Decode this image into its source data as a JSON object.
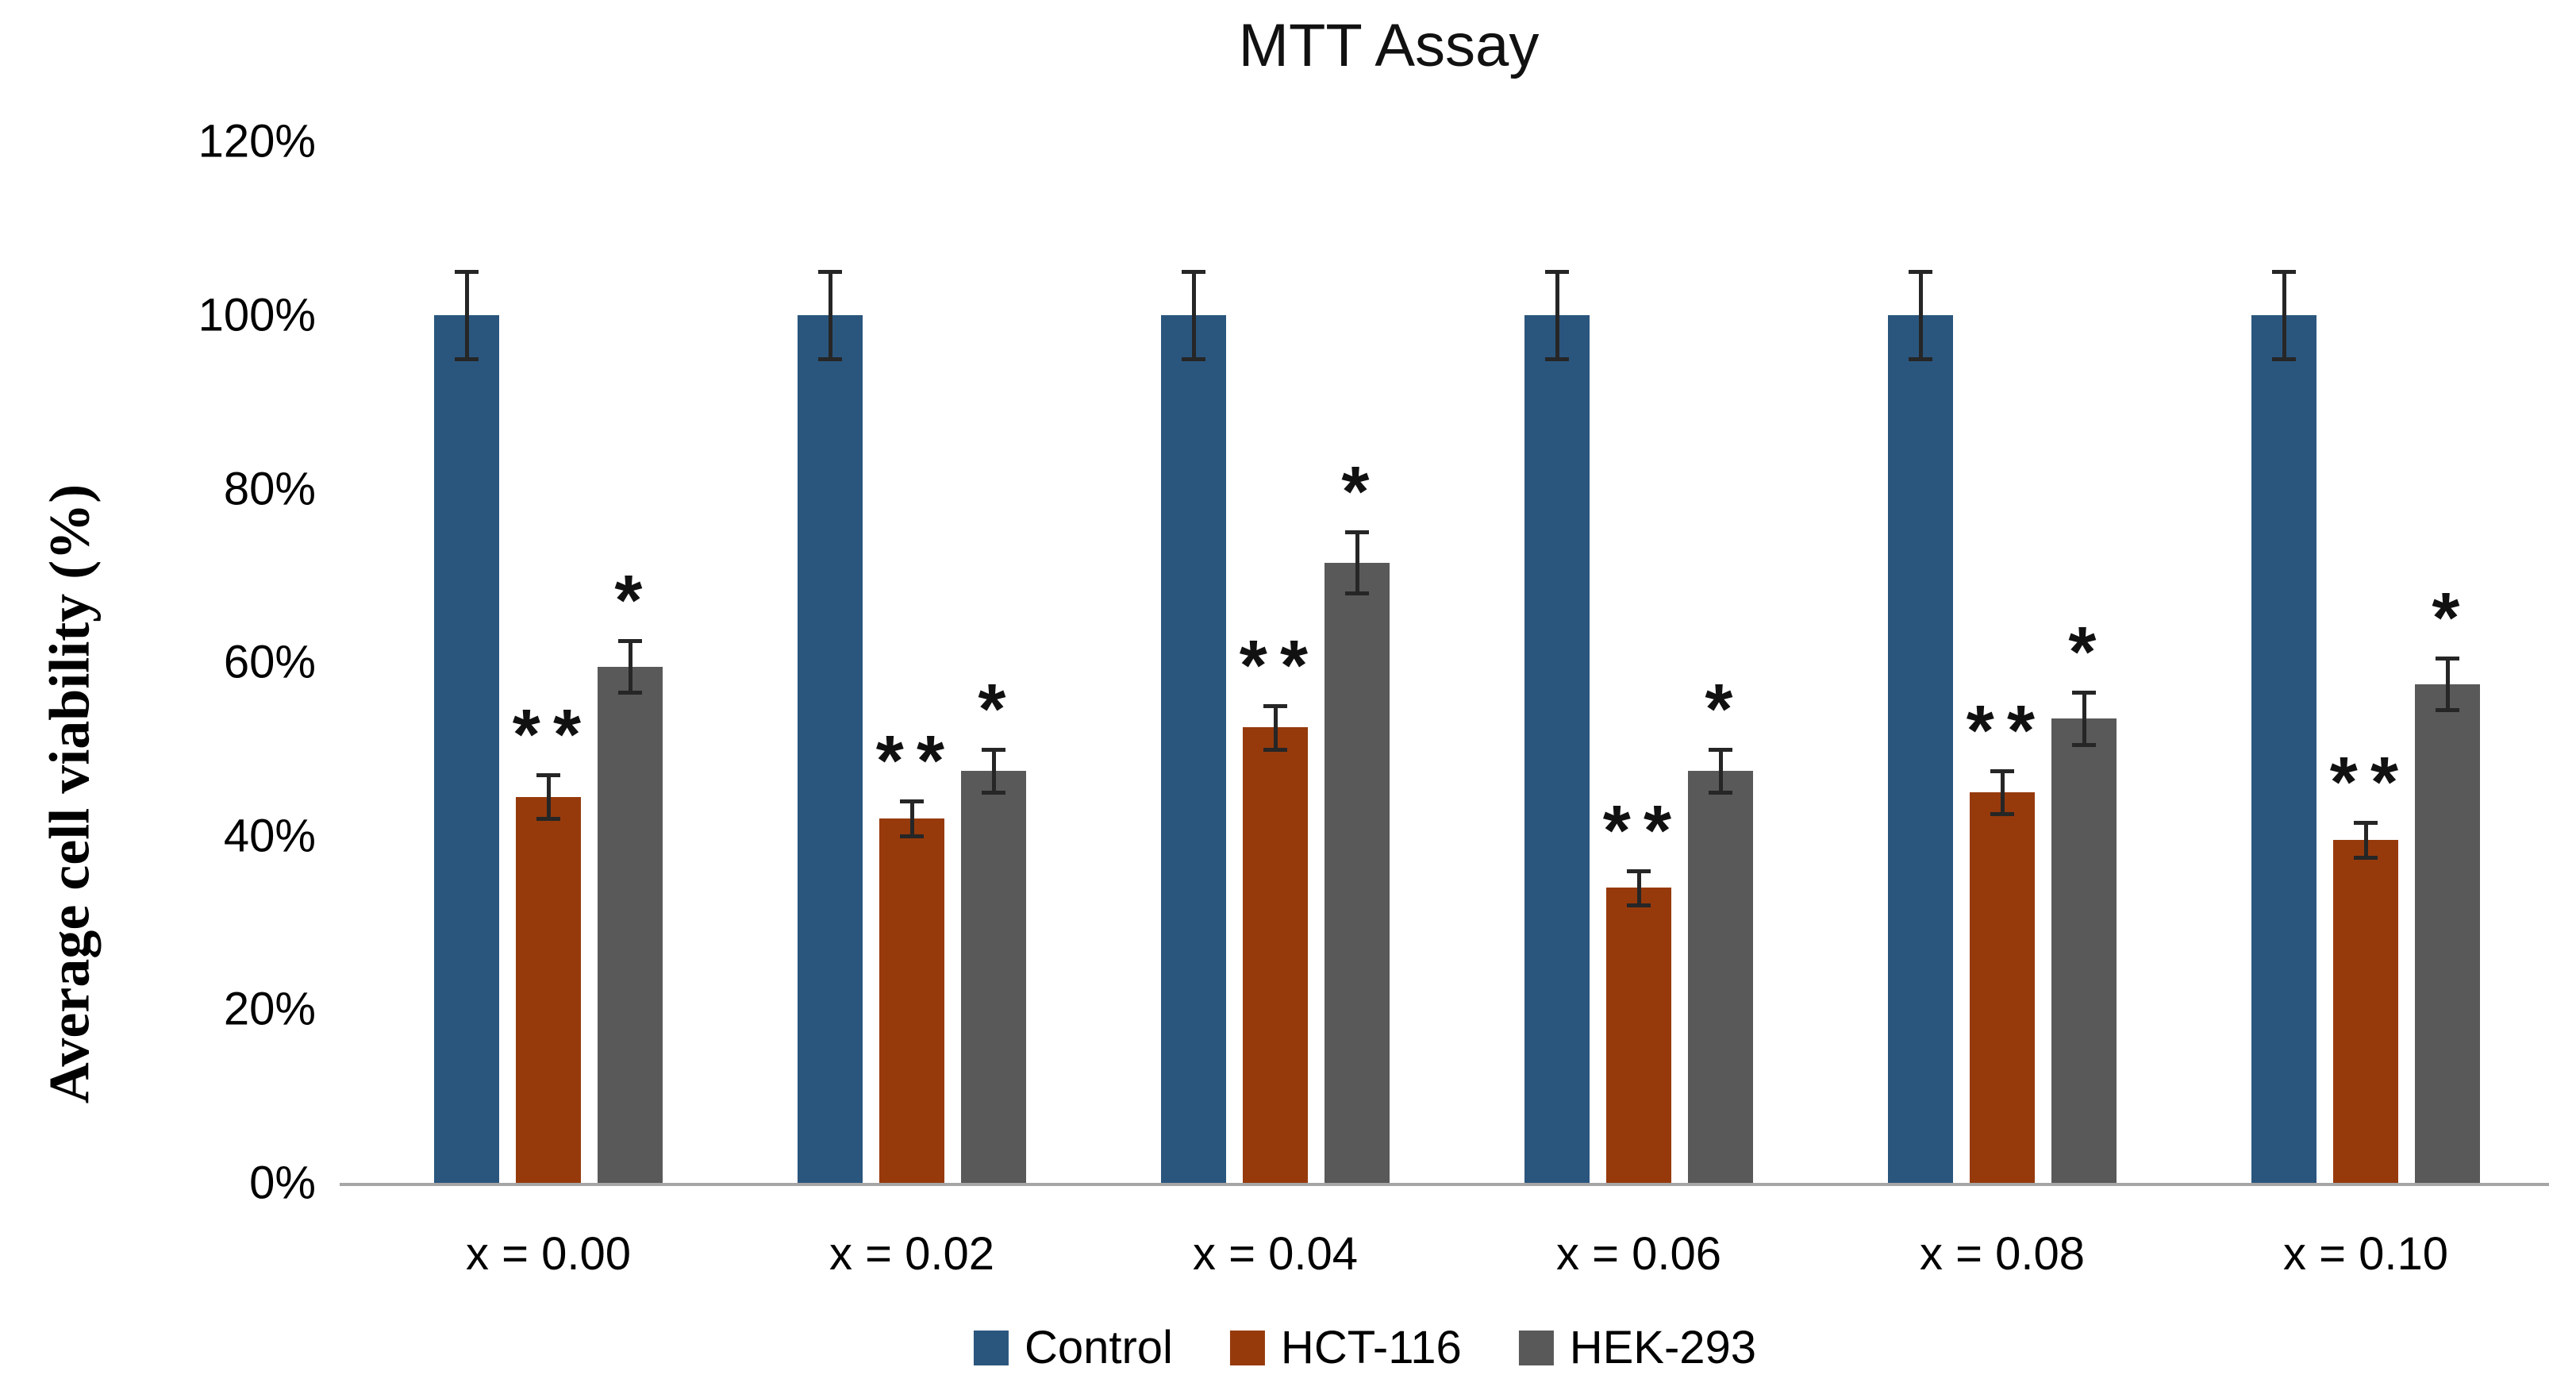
{
  "chart_data": {
    "type": "bar",
    "title": "MTT Assay",
    "ylabel": "Average cell viability (%)",
    "categories": [
      "x = 0.00",
      "x = 0.02",
      "x = 0.04",
      "x = 0.06",
      "x = 0.08",
      "x = 0.10"
    ],
    "yticks": [
      "0%",
      "20%",
      "40%",
      "60%",
      "80%",
      "100%",
      "120%"
    ],
    "ytick_values": [
      0,
      20,
      40,
      60,
      80,
      100,
      120
    ],
    "ylim": [
      0,
      120
    ],
    "grid": false,
    "legend_position": "bottom",
    "error_bars": true,
    "series": [
      {
        "name": "Control",
        "color": "#2A567E",
        "values": [
          100,
          100,
          100,
          100,
          100,
          100
        ],
        "errors": [
          5,
          5,
          5,
          5,
          5,
          5
        ],
        "significance": [
          "",
          "",
          "",
          "",
          "",
          ""
        ]
      },
      {
        "name": "HCT-116",
        "color": "#963A0C",
        "values": [
          44.5,
          42,
          52.5,
          34,
          45,
          39.5
        ],
        "errors": [
          2.5,
          2,
          2.5,
          2,
          2.5,
          2
        ],
        "significance": [
          "**",
          "**",
          "**",
          "**",
          "**",
          "**"
        ]
      },
      {
        "name": "HEK-293",
        "color": "#595959",
        "values": [
          59.5,
          47.5,
          71.5,
          47.5,
          53.5,
          57.5
        ],
        "errors": [
          3,
          2.5,
          3.5,
          2.5,
          3,
          3
        ],
        "significance": [
          "*",
          "*",
          "*",
          "*",
          "*",
          "*"
        ]
      }
    ]
  }
}
